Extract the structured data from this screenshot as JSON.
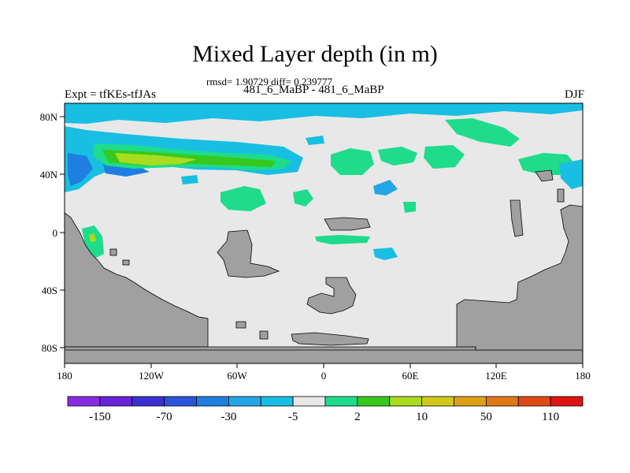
{
  "title": "Mixed Layer depth (in m)",
  "stats": "rmsd= 1.90729 diff= 0.239777",
  "subtitle": "481_6_MaBP - 481_6_MaBP",
  "expt": "Expt = tfKEs-tfJAs",
  "season": "DJF",
  "x_ticks": [
    "180",
    "120W",
    "60W",
    "0",
    "60E",
    "120E",
    "180"
  ],
  "y_ticks": [
    "80N",
    "40N",
    "0",
    "40S",
    "80S"
  ],
  "colorbar": {
    "colors": [
      "#8a2be2",
      "#6a22d8",
      "#3c2fd2",
      "#2a55d8",
      "#1e7fe0",
      "#24a6e6",
      "#18bfe2",
      "#e8e8e8",
      "#1edc8c",
      "#37c81e",
      "#a8dc1e",
      "#d2c81a",
      "#e0a014",
      "#e07814",
      "#e04a14",
      "#e01414"
    ],
    "labels": [
      "-150",
      "-70",
      "-30",
      "-5",
      "2",
      "10",
      "50",
      "110"
    ]
  },
  "colors": {
    "land": "#a0a0a0",
    "ocean_neutral": "#e8e8e8",
    "cyan": "#18bfe2",
    "light_blue": "#24a6e6",
    "blue": "#1e7fe0",
    "green": "#1edc8c",
    "green_dark": "#37c81e",
    "yellow_green": "#a8dc1e"
  }
}
